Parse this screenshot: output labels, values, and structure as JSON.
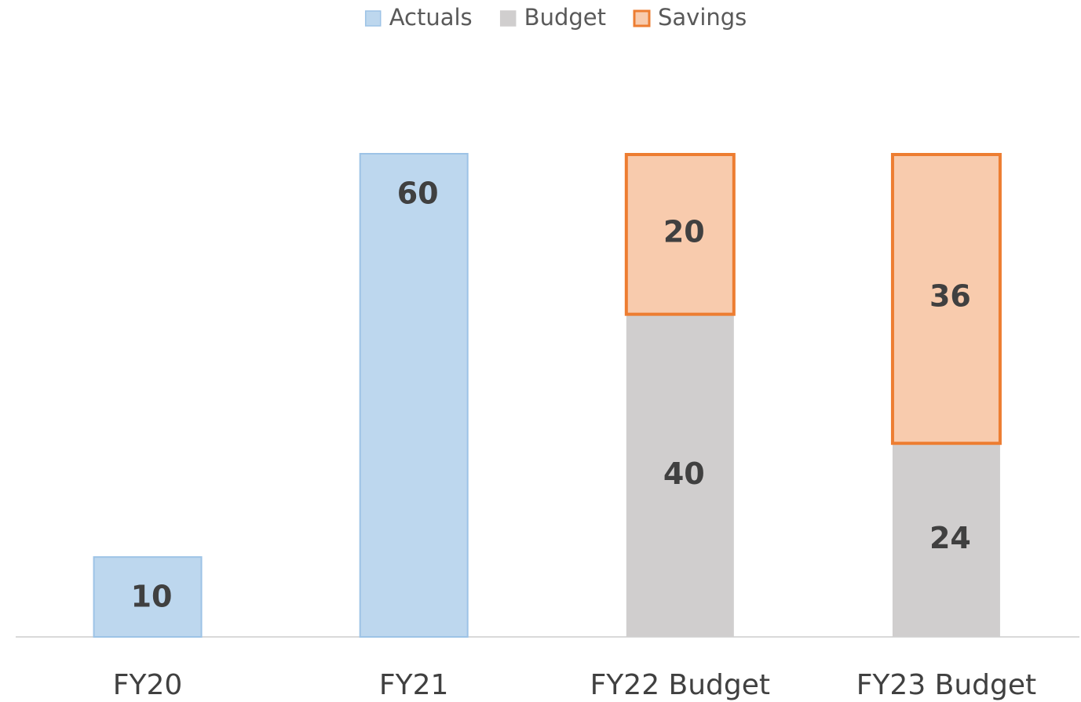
{
  "chart_data": {
    "type": "stacked_bar",
    "categories": [
      "FY20",
      "FY21",
      "FY22 Budget",
      "FY23 Budget"
    ],
    "series": [
      {
        "name": "Actuals",
        "color": "#bdd7ee",
        "edge_color": "#9dc3e6",
        "values": [
          10,
          60,
          null,
          null
        ]
      },
      {
        "name": "Budget",
        "color": "#d0cece",
        "edge_color": "#d0cece",
        "values": [
          null,
          null,
          40,
          24
        ]
      },
      {
        "name": "Savings",
        "color": "#f8cbad",
        "edge_color": "#ed7d31",
        "values": [
          null,
          null,
          20,
          36
        ]
      }
    ],
    "legend": "top",
    "data_labels": true
  }
}
